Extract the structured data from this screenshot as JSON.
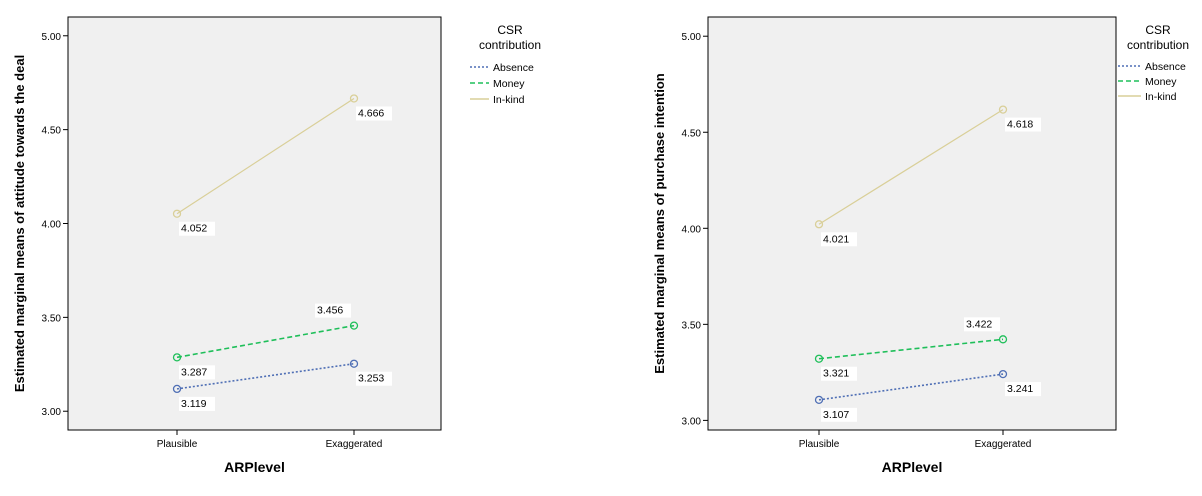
{
  "chart_data": [
    {
      "type": "line",
      "categories": [
        "Plausible",
        "Exaggerated"
      ],
      "xlabel": "ARPlevel",
      "ylabel": "Estimated marginal means of attitude towards the deal",
      "ylim": [
        2.9,
        5.1
      ],
      "yticks": [
        "3.00",
        "3.50",
        "4.00",
        "4.50",
        "5.00"
      ],
      "legend_title": [
        "CSR",
        "contribution"
      ],
      "legend_position": "top-right, outside plot",
      "series": [
        {
          "name": "Absence",
          "values": [
            3.119,
            3.253
          ],
          "labels": [
            "3.119",
            "3.253"
          ],
          "color": "#4f6fb5",
          "style": "dotted"
        },
        {
          "name": "Money",
          "values": [
            3.287,
            3.456
          ],
          "labels": [
            "3.287",
            "3.456"
          ],
          "color": "#1fbf5a",
          "style": "dashed"
        },
        {
          "name": "In-kind",
          "values": [
            4.052,
            4.666
          ],
          "labels": [
            "4.052",
            "4.666"
          ],
          "color": "#d9cf98",
          "style": "solid"
        }
      ]
    },
    {
      "type": "line",
      "categories": [
        "Plausible",
        "Exaggerated"
      ],
      "xlabel": "ARPlevel",
      "ylabel": "Estimated marginal means of purchase intention",
      "ylim": [
        2.95,
        5.1
      ],
      "yticks": [
        "3.00",
        "3.50",
        "4.00",
        "4.50",
        "5.00"
      ],
      "legend_title": [
        "CSR",
        "contribution"
      ],
      "legend_position": "top-right, outside plot",
      "series": [
        {
          "name": "Absence",
          "values": [
            3.107,
            3.241
          ],
          "labels": [
            "3.107",
            "3.241"
          ],
          "color": "#4f6fb5",
          "style": "dotted"
        },
        {
          "name": "Money",
          "values": [
            3.321,
            3.422
          ],
          "labels": [
            "3.321",
            "3.422"
          ],
          "color": "#1fbf5a",
          "style": "dashed"
        },
        {
          "name": "In-kind",
          "values": [
            4.021,
            4.618
          ],
          "labels": [
            "4.021",
            "4.618"
          ],
          "color": "#d9cf98",
          "style": "solid"
        }
      ]
    }
  ]
}
